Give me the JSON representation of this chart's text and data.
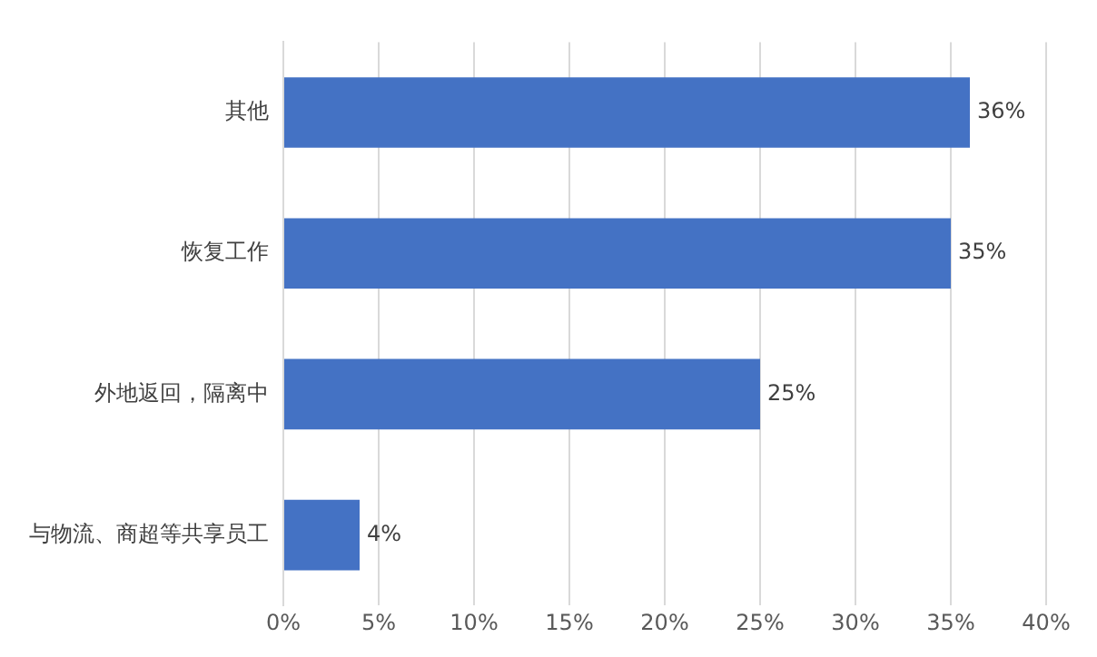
{
  "chart_data": {
    "type": "bar",
    "orientation": "horizontal",
    "categories": [
      "其他",
      "恢复工作",
      "外地返回，隔离中",
      "与物流、商超等共享员工"
    ],
    "values": [
      36,
      35,
      25,
      4
    ],
    "value_labels": [
      "36%",
      "35%",
      "25%",
      "4%"
    ],
    "color": "#4472c4",
    "xlim": [
      0,
      40
    ],
    "xticks": [
      {
        "value": 0,
        "label": "0%"
      },
      {
        "value": 5,
        "label": "5%"
      },
      {
        "value": 10,
        "label": "10%"
      },
      {
        "value": 15,
        "label": "15%"
      },
      {
        "value": 20,
        "label": "20%"
      },
      {
        "value": 25,
        "label": "25%"
      },
      {
        "value": 30,
        "label": "30%"
      },
      {
        "value": 35,
        "label": "35%"
      },
      {
        "value": 40,
        "label": "40%"
      }
    ],
    "grid": "x",
    "legend": false
  }
}
